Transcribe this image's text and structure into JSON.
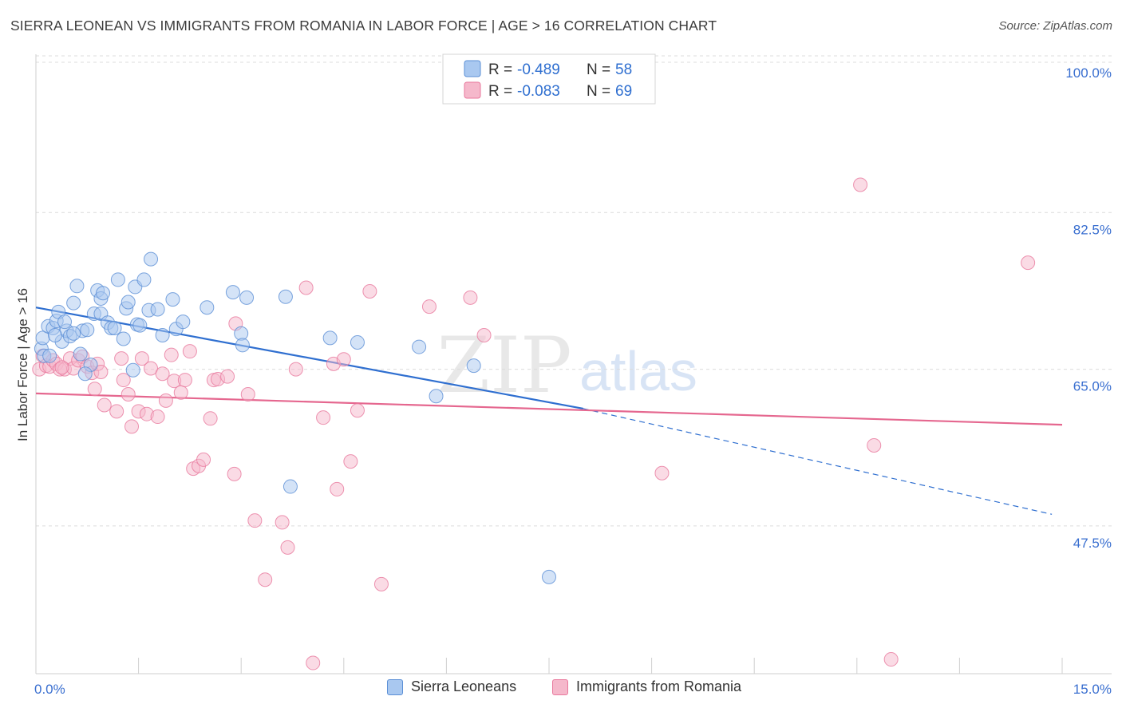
{
  "header": {
    "title": "SIERRA LEONEAN VS IMMIGRANTS FROM ROMANIA IN LABOR FORCE | AGE > 16 CORRELATION CHART",
    "source": "Source: ZipAtlas.com"
  },
  "watermark": {
    "zip": "ZIP",
    "atlas": "atlas"
  },
  "colors": {
    "blue_fill": "#a9c8f0",
    "blue_stroke": "#5b8fd6",
    "blue_line": "#2f6fd0",
    "pink_fill": "#f5b8cb",
    "pink_stroke": "#e9799d",
    "pink_line": "#e5678f",
    "axis_text": "#3a6fd0",
    "grid": "#dcdcdc"
  },
  "chart_data": {
    "type": "scatter",
    "xlabel": "",
    "ylabel": "In Labor Force | Age > 16",
    "x_range": [
      0,
      15
    ],
    "y_range": [
      31,
      100
    ],
    "x_ticks": [
      0,
      1.5,
      3,
      4.5,
      6,
      7.5,
      9,
      10.5,
      12,
      13.5,
      15
    ],
    "x_tick_labels": {
      "min": "0.0%",
      "max": "15.0%"
    },
    "y_ticks": [
      {
        "value": 100,
        "label": "100.0%"
      },
      {
        "value": 82.5,
        "label": "82.5%"
      },
      {
        "value": 65,
        "label": "65.0%"
      },
      {
        "value": 47.5,
        "label": "47.5%"
      }
    ],
    "legend_stats": [
      {
        "r_label": "R = ",
        "r_value": "-0.489",
        "n_label": "N = ",
        "n_value": "58"
      },
      {
        "r_label": "R = ",
        "r_value": "-0.083",
        "n_label": "N = ",
        "n_value": "69"
      }
    ],
    "series": [
      {
        "name": "Sierra Leoneans",
        "trend": {
          "solid_from": [
            0,
            71.9
          ],
          "solid_to": [
            8.0,
            60.6
          ],
          "dashed_to": [
            14.85,
            48.8
          ]
        },
        "points": [
          [
            0.08,
            67.3
          ],
          [
            0.12,
            66.5
          ],
          [
            0.2,
            66.5
          ],
          [
            0.1,
            68.5
          ],
          [
            0.18,
            69.8
          ],
          [
            0.25,
            69.6
          ],
          [
            0.3,
            70.4
          ],
          [
            0.33,
            71.4
          ],
          [
            0.38,
            68.1
          ],
          [
            0.45,
            69.3
          ],
          [
            0.55,
            72.4
          ],
          [
            0.6,
            74.3
          ],
          [
            0.5,
            68.7
          ],
          [
            0.65,
            66.7
          ],
          [
            0.68,
            69.3
          ],
          [
            0.75,
            69.4
          ],
          [
            0.8,
            65.5
          ],
          [
            0.85,
            71.2
          ],
          [
            0.9,
            73.8
          ],
          [
            0.95,
            72.9
          ],
          [
            0.98,
            73.5
          ],
          [
            0.95,
            71.2
          ],
          [
            1.05,
            70.2
          ],
          [
            1.1,
            69.6
          ],
          [
            1.15,
            69.6
          ],
          [
            1.2,
            75.0
          ],
          [
            1.28,
            68.4
          ],
          [
            1.32,
            71.8
          ],
          [
            1.35,
            72.5
          ],
          [
            1.42,
            64.9
          ],
          [
            1.45,
            74.2
          ],
          [
            1.48,
            70.0
          ],
          [
            1.52,
            69.9
          ],
          [
            1.58,
            75.0
          ],
          [
            1.65,
            71.6
          ],
          [
            1.68,
            77.3
          ],
          [
            1.78,
            71.7
          ],
          [
            1.85,
            68.8
          ],
          [
            2.0,
            72.8
          ],
          [
            2.05,
            69.5
          ],
          [
            2.15,
            70.3
          ],
          [
            2.5,
            71.9
          ],
          [
            2.88,
            73.6
          ],
          [
            3.0,
            69.0
          ],
          [
            3.02,
            67.7
          ],
          [
            3.08,
            73.0
          ],
          [
            3.65,
            73.1
          ],
          [
            3.72,
            51.9
          ],
          [
            4.3,
            68.5
          ],
          [
            4.7,
            68.0
          ],
          [
            5.6,
            67.5
          ],
          [
            5.85,
            62.0
          ],
          [
            6.4,
            65.4
          ],
          [
            7.5,
            41.8
          ],
          [
            0.55,
            69.0
          ],
          [
            0.42,
            70.3
          ],
          [
            0.28,
            68.8
          ],
          [
            0.72,
            64.5
          ]
        ]
      },
      {
        "name": "Immigrants from Romania",
        "trend": {
          "from": [
            0,
            62.3
          ],
          "to": [
            15,
            58.8
          ]
        },
        "points": [
          [
            0.05,
            65.0
          ],
          [
            0.1,
            66.5
          ],
          [
            0.15,
            65.4
          ],
          [
            0.2,
            65.3
          ],
          [
            0.25,
            66.0
          ],
          [
            0.3,
            65.6
          ],
          [
            0.35,
            65.0
          ],
          [
            0.42,
            65.0
          ],
          [
            0.5,
            66.2
          ],
          [
            0.55,
            65.1
          ],
          [
            0.62,
            66.0
          ],
          [
            0.68,
            66.4
          ],
          [
            0.75,
            65.3
          ],
          [
            0.82,
            64.6
          ],
          [
            0.86,
            62.8
          ],
          [
            0.9,
            65.6
          ],
          [
            0.95,
            64.7
          ],
          [
            1.0,
            61.0
          ],
          [
            1.18,
            60.3
          ],
          [
            1.25,
            66.2
          ],
          [
            1.28,
            63.8
          ],
          [
            1.35,
            62.2
          ],
          [
            1.4,
            58.6
          ],
          [
            1.5,
            60.3
          ],
          [
            1.55,
            66.2
          ],
          [
            1.62,
            60.0
          ],
          [
            1.68,
            65.1
          ],
          [
            1.78,
            59.7
          ],
          [
            1.85,
            64.5
          ],
          [
            1.9,
            61.5
          ],
          [
            1.98,
            66.6
          ],
          [
            2.02,
            63.7
          ],
          [
            2.12,
            62.4
          ],
          [
            2.18,
            63.8
          ],
          [
            2.25,
            67.0
          ],
          [
            2.3,
            53.9
          ],
          [
            2.38,
            54.2
          ],
          [
            2.45,
            54.9
          ],
          [
            2.55,
            59.5
          ],
          [
            2.6,
            63.8
          ],
          [
            2.66,
            63.9
          ],
          [
            2.8,
            64.2
          ],
          [
            2.9,
            53.3
          ],
          [
            2.92,
            70.1
          ],
          [
            3.1,
            62.2
          ],
          [
            3.2,
            48.1
          ],
          [
            3.35,
            41.5
          ],
          [
            3.6,
            47.9
          ],
          [
            3.68,
            45.1
          ],
          [
            3.8,
            65.0
          ],
          [
            3.95,
            74.1
          ],
          [
            4.05,
            32.2
          ],
          [
            4.2,
            59.6
          ],
          [
            4.35,
            65.6
          ],
          [
            4.4,
            51.6
          ],
          [
            4.5,
            66.1
          ],
          [
            4.6,
            54.7
          ],
          [
            4.7,
            60.4
          ],
          [
            4.88,
            73.7
          ],
          [
            5.05,
            41.0
          ],
          [
            5.75,
            72.0
          ],
          [
            6.35,
            73.0
          ],
          [
            6.55,
            68.8
          ],
          [
            9.15,
            53.4
          ],
          [
            12.05,
            85.6
          ],
          [
            12.25,
            56.5
          ],
          [
            12.5,
            32.6
          ],
          [
            14.5,
            76.9
          ],
          [
            0.38,
            65.2
          ]
        ]
      }
    ]
  }
}
